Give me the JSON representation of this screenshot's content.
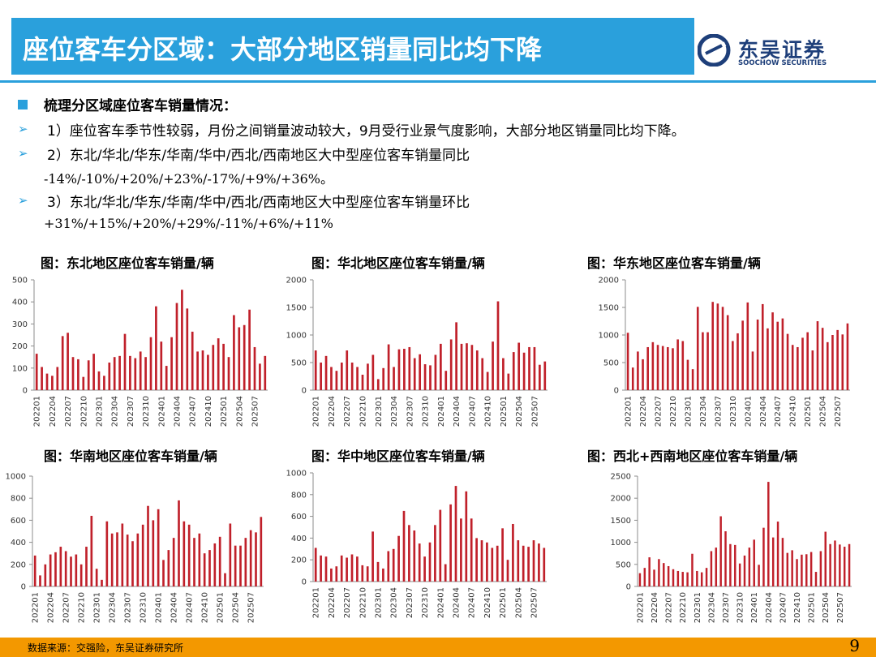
{
  "header": {
    "title": "座位客车分区域：大部分地区销量同比均下降",
    "logo_cn": "东吴证券",
    "logo_en": "SOOCHOW SECURITIES"
  },
  "summary": {
    "heading": "梳理分区域座位客车销量情况：",
    "point1": "1）座位客车季节性较弱，月份之间销量波动较大，9月受行业景气度影响，大部分地区销量同比均下降。",
    "point2_line1": "2）东北/华北/华东/华南/华中/西北/西南地区大中型座位客车销量同比",
    "point2_line2": "-14%/-10%/+20%/+23%/-17%/+9%/+36%。",
    "point3_line1": "3）东北/华北/华东/华南/华中/西北/西南地区大中型座位客车销量环比",
    "point3_line2": "+31%/+15%/+20%/+29%/-11%/+6%/+11%"
  },
  "footer": {
    "source": "数据来源：交强险，东吴证券研究所",
    "page": "9"
  },
  "colors": {
    "accent": "#2aa0dc",
    "bar": "#c0202a",
    "footer": "#f39800",
    "logo": "#1e3f7a"
  },
  "chart_data": [
    {
      "type": "bar",
      "title": "图：东北地区座位客车销量/辆",
      "x": [
        "202201",
        "202202",
        "202203",
        "202204",
        "202205",
        "202206",
        "202207",
        "202208",
        "202209",
        "202210",
        "202211",
        "202212",
        "202301",
        "202302",
        "202303",
        "202304",
        "202305",
        "202306",
        "202307",
        "202308",
        "202309",
        "202310",
        "202311",
        "202312",
        "202401",
        "202402",
        "202403",
        "202404",
        "202405",
        "202406",
        "202407",
        "202408",
        "202409",
        "202410",
        "202411",
        "202412",
        "202501",
        "202502",
        "202503",
        "202504",
        "202505",
        "202506",
        "202507",
        "202508",
        "202509"
      ],
      "x_tick_labels": [
        "202201",
        "202204",
        "202207",
        "202210",
        "202301",
        "202304",
        "202307",
        "202310",
        "202401",
        "202404",
        "202407",
        "202410",
        "202501",
        "202504",
        "202507"
      ],
      "values": [
        165,
        105,
        75,
        65,
        105,
        245,
        260,
        150,
        140,
        60,
        135,
        165,
        85,
        65,
        125,
        150,
        155,
        255,
        155,
        145,
        175,
        150,
        240,
        380,
        220,
        110,
        240,
        395,
        455,
        370,
        265,
        175,
        180,
        160,
        205,
        235,
        210,
        150,
        340,
        285,
        295,
        365,
        195,
        120,
        155
      ],
      "ylim": [
        0,
        500
      ],
      "yticks": [
        0,
        100,
        200,
        300,
        400,
        500
      ]
    },
    {
      "type": "bar",
      "title": "图：华北地区座位客车销量/辆",
      "x": [
        "202201",
        "202202",
        "202203",
        "202204",
        "202205",
        "202206",
        "202207",
        "202208",
        "202209",
        "202210",
        "202211",
        "202212",
        "202301",
        "202302",
        "202303",
        "202304",
        "202305",
        "202306",
        "202307",
        "202308",
        "202309",
        "202310",
        "202311",
        "202312",
        "202401",
        "202402",
        "202403",
        "202404",
        "202405",
        "202406",
        "202407",
        "202408",
        "202409",
        "202410",
        "202411",
        "202412",
        "202501",
        "202502",
        "202503",
        "202504",
        "202505",
        "202506",
        "202507",
        "202508",
        "202509"
      ],
      "x_tick_labels": [
        "202201",
        "202204",
        "202207",
        "202210",
        "202301",
        "202304",
        "202307",
        "202310",
        "202401",
        "202404",
        "202407",
        "202410",
        "202501",
        "202504",
        "202507"
      ],
      "values": [
        720,
        500,
        620,
        420,
        350,
        500,
        720,
        500,
        420,
        280,
        480,
        640,
        200,
        400,
        830,
        420,
        740,
        750,
        780,
        580,
        650,
        470,
        450,
        640,
        840,
        350,
        920,
        1230,
        840,
        850,
        820,
        720,
        580,
        330,
        880,
        1610,
        580,
        300,
        690,
        860,
        680,
        780,
        780,
        460,
        520
      ],
      "ylim": [
        0,
        2000
      ],
      "yticks": [
        0,
        500,
        1000,
        1500,
        2000
      ]
    },
    {
      "type": "bar",
      "title": "图：华东地区座位客车销量/辆",
      "x": [
        "202201",
        "202202",
        "202203",
        "202204",
        "202205",
        "202206",
        "202207",
        "202208",
        "202209",
        "202210",
        "202211",
        "202212",
        "202301",
        "202302",
        "202303",
        "202304",
        "202305",
        "202306",
        "202307",
        "202308",
        "202309",
        "202310",
        "202311",
        "202312",
        "202401",
        "202402",
        "202403",
        "202404",
        "202405",
        "202406",
        "202407",
        "202408",
        "202409",
        "202410",
        "202411",
        "202412",
        "202501",
        "202502",
        "202503",
        "202504",
        "202505",
        "202506",
        "202507",
        "202508",
        "202509"
      ],
      "x_tick_labels": [
        "202201",
        "202204",
        "202207",
        "202210",
        "202301",
        "202304",
        "202307",
        "202310",
        "202401",
        "202404",
        "202407",
        "202410",
        "202501",
        "202504",
        "202507"
      ],
      "values": [
        1040,
        410,
        700,
        560,
        780,
        870,
        820,
        800,
        780,
        760,
        920,
        890,
        550,
        380,
        1510,
        1050,
        1050,
        1600,
        1570,
        1510,
        1360,
        890,
        1030,
        1260,
        1590,
        700,
        1280,
        1560,
        1120,
        1410,
        1240,
        1300,
        1020,
        820,
        780,
        950,
        1050,
        720,
        1250,
        1130,
        870,
        1000,
        1090,
        1010,
        1210
      ],
      "ylim": [
        0,
        2000
      ],
      "yticks": [
        0,
        500,
        1000,
        1500,
        2000
      ]
    },
    {
      "type": "bar",
      "title": "图：华南地区座位客车销量/辆",
      "x": [
        "202201",
        "202202",
        "202203",
        "202204",
        "202205",
        "202206",
        "202207",
        "202208",
        "202209",
        "202210",
        "202211",
        "202212",
        "202301",
        "202302",
        "202303",
        "202304",
        "202305",
        "202306",
        "202307",
        "202308",
        "202309",
        "202310",
        "202311",
        "202312",
        "202401",
        "202402",
        "202403",
        "202404",
        "202405",
        "202406",
        "202407",
        "202408",
        "202409",
        "202410",
        "202411",
        "202412",
        "202501",
        "202502",
        "202503",
        "202504",
        "202505",
        "202506",
        "202507",
        "202508",
        "202509"
      ],
      "x_tick_labels": [
        "202201",
        "202204",
        "202207",
        "202210",
        "202301",
        "202304",
        "202307",
        "202310",
        "202401",
        "202404",
        "202407",
        "202410",
        "202501",
        "202504",
        "202507"
      ],
      "values": [
        280,
        100,
        200,
        290,
        310,
        360,
        320,
        270,
        290,
        200,
        360,
        640,
        160,
        60,
        590,
        480,
        490,
        570,
        470,
        410,
        480,
        560,
        730,
        600,
        700,
        240,
        330,
        440,
        780,
        590,
        560,
        440,
        480,
        300,
        330,
        390,
        450,
        120,
        570,
        370,
        370,
        440,
        510,
        490,
        630
      ],
      "ylim": [
        0,
        1000
      ],
      "yticks": [
        0,
        200,
        400,
        600,
        800,
        1000
      ]
    },
    {
      "type": "bar",
      "title": "图：华中地区座位客车销量/辆",
      "x": [
        "202201",
        "202202",
        "202203",
        "202204",
        "202205",
        "202206",
        "202207",
        "202208",
        "202209",
        "202210",
        "202211",
        "202212",
        "202301",
        "202302",
        "202303",
        "202304",
        "202305",
        "202306",
        "202307",
        "202308",
        "202309",
        "202310",
        "202311",
        "202312",
        "202401",
        "202402",
        "202403",
        "202404",
        "202405",
        "202406",
        "202407",
        "202408",
        "202409",
        "202410",
        "202411",
        "202412",
        "202501",
        "202502",
        "202503",
        "202504",
        "202505",
        "202506",
        "202507",
        "202508",
        "202509"
      ],
      "x_tick_labels": [
        "202201",
        "202204",
        "202207",
        "202210",
        "202301",
        "202304",
        "202307",
        "202310",
        "202401",
        "202404",
        "202407",
        "202410",
        "202501",
        "202504",
        "202507"
      ],
      "values": [
        310,
        240,
        230,
        120,
        140,
        240,
        220,
        250,
        230,
        150,
        140,
        460,
        180,
        120,
        280,
        300,
        420,
        650,
        520,
        470,
        350,
        230,
        360,
        520,
        660,
        160,
        710,
        880,
        580,
        830,
        580,
        400,
        380,
        360,
        310,
        330,
        490,
        200,
        530,
        380,
        330,
        320,
        380,
        350,
        310
      ],
      "ylim": [
        0,
        1000
      ],
      "yticks": [
        0,
        200,
        400,
        600,
        800,
        1000
      ]
    },
    {
      "type": "bar",
      "title": "图：西北+西南地区座位客车销量/辆",
      "x": [
        "202201",
        "202202",
        "202203",
        "202204",
        "202205",
        "202206",
        "202207",
        "202208",
        "202209",
        "202210",
        "202211",
        "202212",
        "202301",
        "202302",
        "202303",
        "202304",
        "202305",
        "202306",
        "202307",
        "202308",
        "202309",
        "202310",
        "202311",
        "202312",
        "202401",
        "202402",
        "202403",
        "202404",
        "202405",
        "202406",
        "202407",
        "202408",
        "202409",
        "202410",
        "202411",
        "202412",
        "202501",
        "202502",
        "202503",
        "202504",
        "202505",
        "202506",
        "202507",
        "202508",
        "202509"
      ],
      "x_tick_labels": [
        "202201",
        "202204",
        "202207",
        "202210",
        "202301",
        "202304",
        "202307",
        "202310",
        "202401",
        "202404",
        "202407",
        "202410",
        "202501",
        "202504",
        "202507"
      ],
      "values": [
        300,
        420,
        660,
        380,
        620,
        530,
        460,
        390,
        350,
        330,
        320,
        740,
        350,
        320,
        420,
        800,
        880,
        1590,
        1250,
        960,
        940,
        520,
        700,
        880,
        1060,
        490,
        1330,
        2370,
        1110,
        1470,
        1100,
        760,
        820,
        620,
        720,
        730,
        780,
        330,
        800,
        1240,
        960,
        1040,
        950,
        900,
        960
      ],
      "ylim": [
        0,
        2500
      ],
      "yticks": [
        0,
        500,
        1000,
        1500,
        2000,
        2500
      ]
    }
  ]
}
